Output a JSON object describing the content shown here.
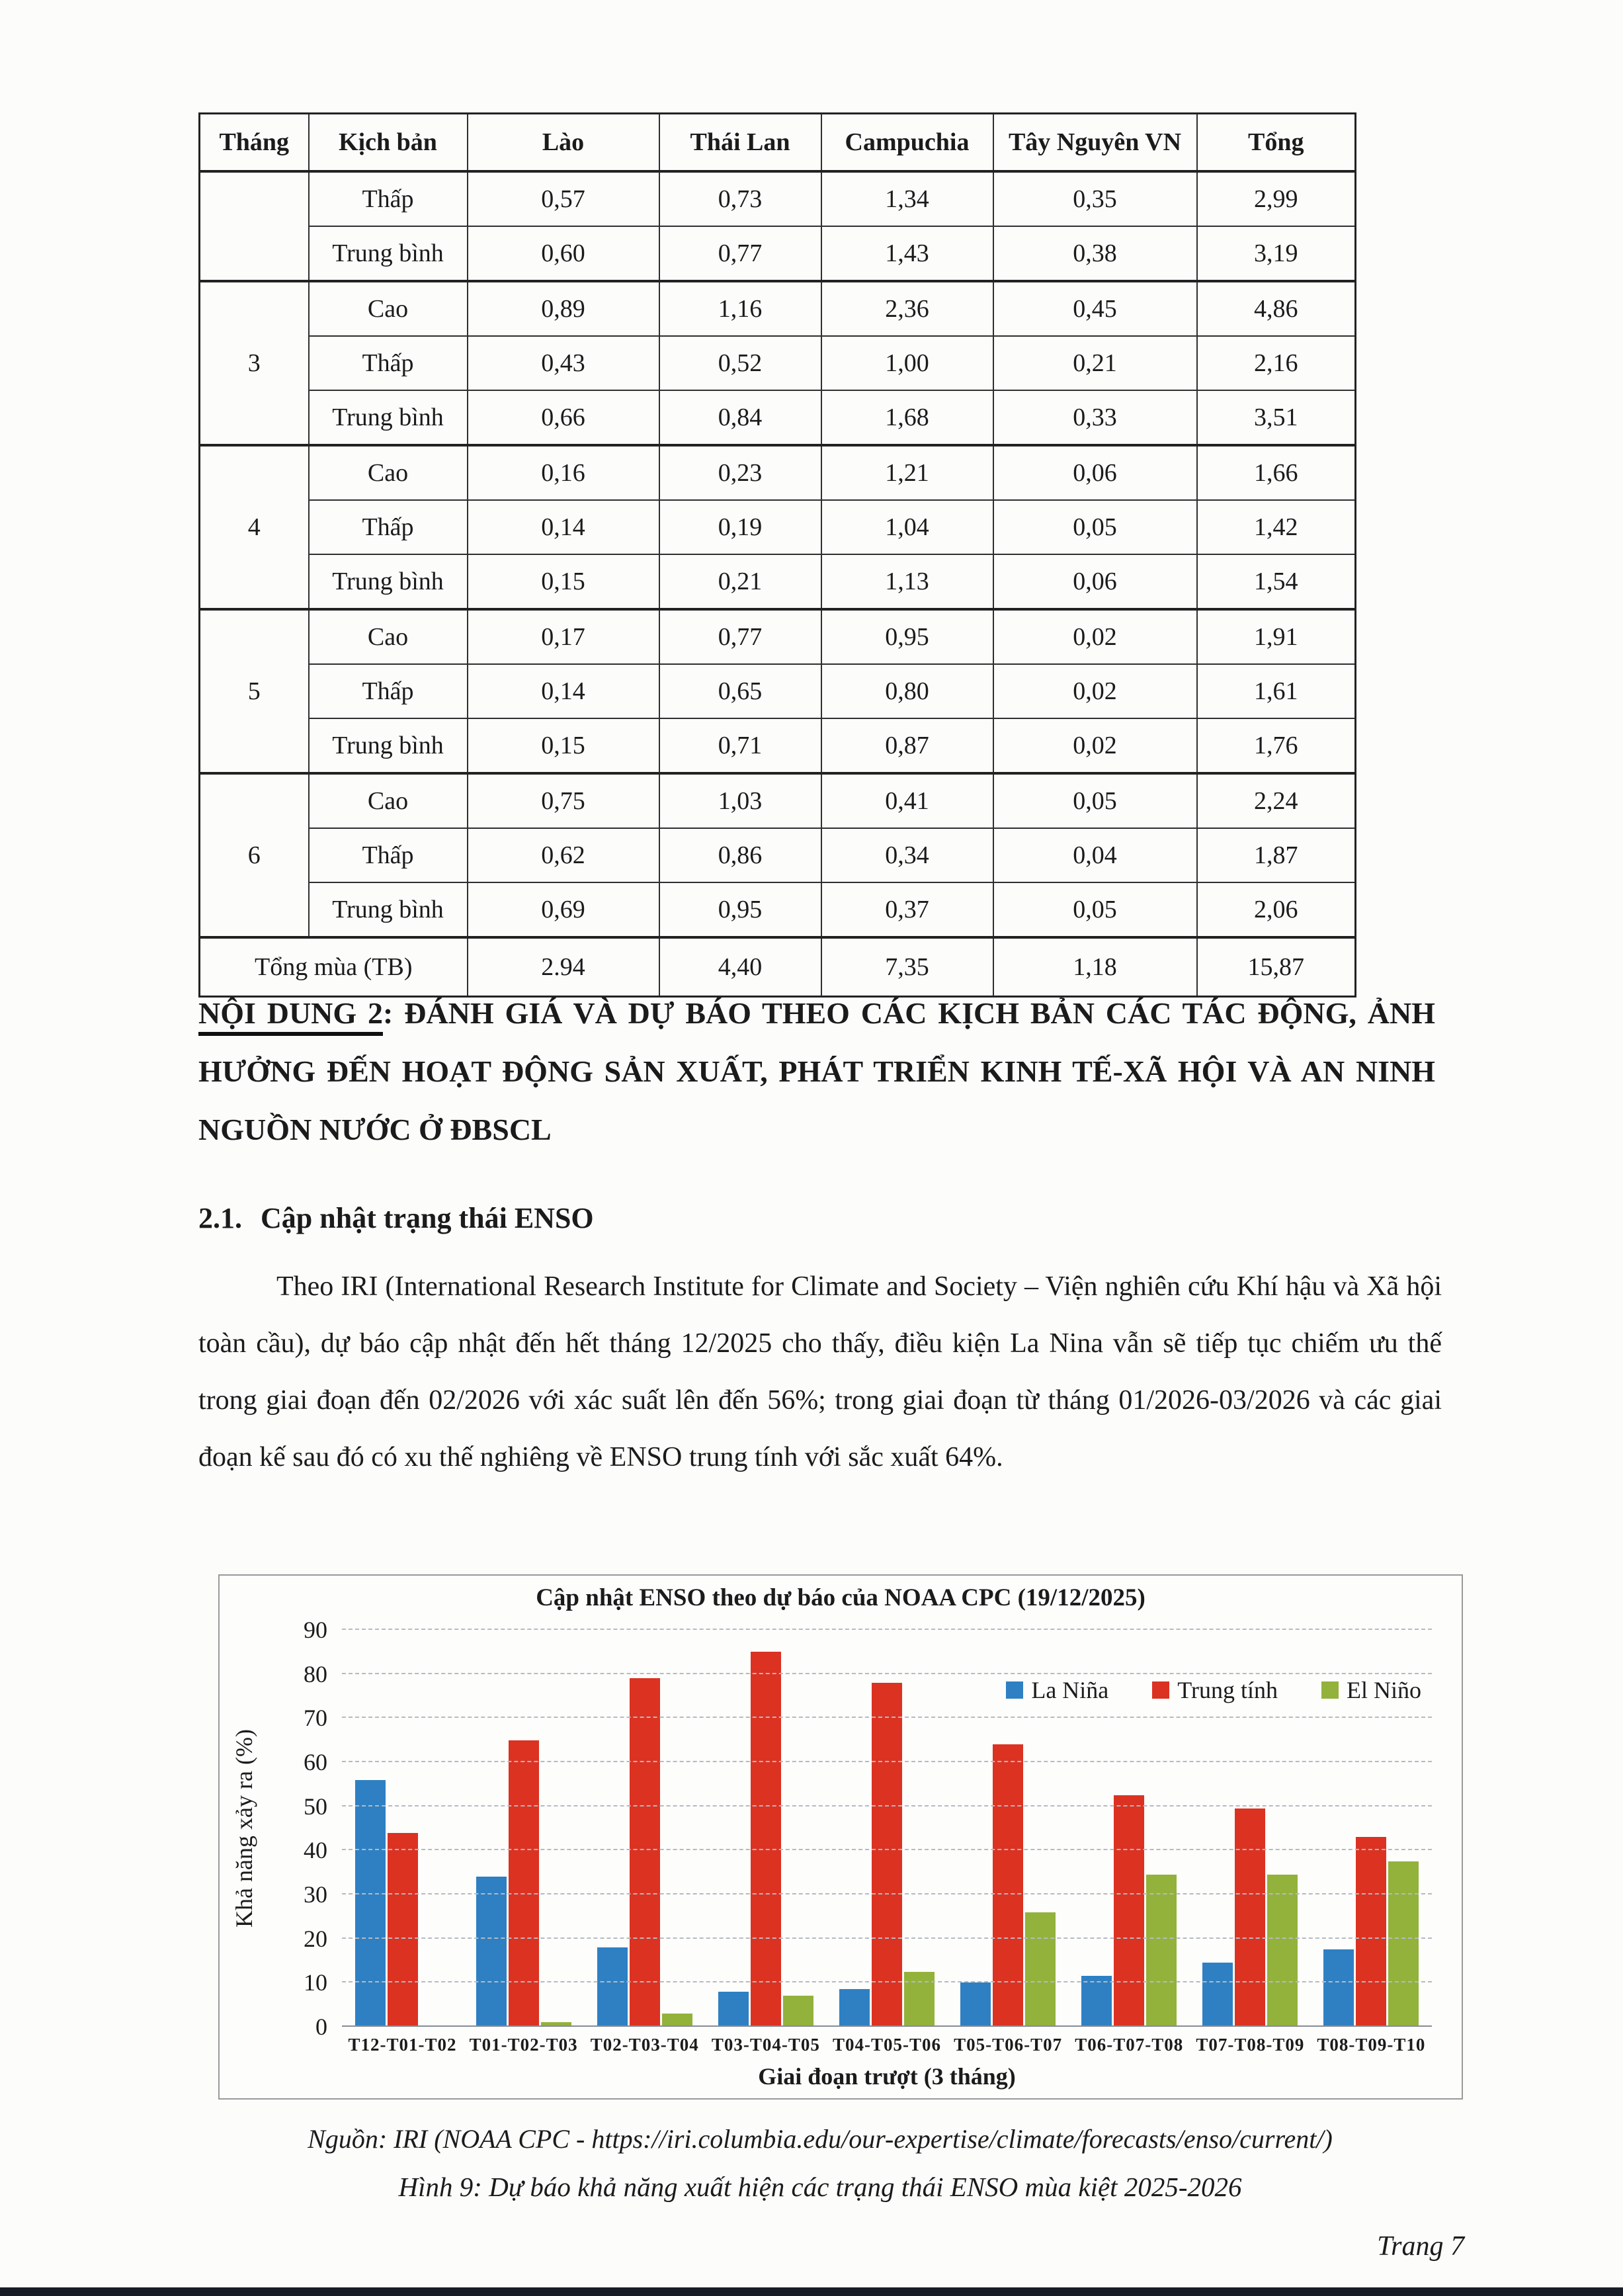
{
  "table": {
    "headers": [
      "Tháng",
      "Kịch bản",
      "Lào",
      "Thái Lan",
      "Campuchia",
      "Tây Nguyên VN",
      "Tổng"
    ],
    "groups": [
      {
        "month": "",
        "rows": [
          {
            "scenario": "Thấp",
            "values": [
              "0,57",
              "0,73",
              "1,34",
              "0,35",
              "2,99"
            ]
          },
          {
            "scenario": "Trung bình",
            "values": [
              "0,60",
              "0,77",
              "1,43",
              "0,38",
              "3,19"
            ]
          }
        ]
      },
      {
        "month": "3",
        "rows": [
          {
            "scenario": "Cao",
            "values": [
              "0,89",
              "1,16",
              "2,36",
              "0,45",
              "4,86"
            ]
          },
          {
            "scenario": "Thấp",
            "values": [
              "0,43",
              "0,52",
              "1,00",
              "0,21",
              "2,16"
            ]
          },
          {
            "scenario": "Trung bình",
            "values": [
              "0,66",
              "0,84",
              "1,68",
              "0,33",
              "3,51"
            ]
          }
        ]
      },
      {
        "month": "4",
        "rows": [
          {
            "scenario": "Cao",
            "values": [
              "0,16",
              "0,23",
              "1,21",
              "0,06",
              "1,66"
            ]
          },
          {
            "scenario": "Thấp",
            "values": [
              "0,14",
              "0,19",
              "1,04",
              "0,05",
              "1,42"
            ]
          },
          {
            "scenario": "Trung bình",
            "values": [
              "0,15",
              "0,21",
              "1,13",
              "0,06",
              "1,54"
            ]
          }
        ]
      },
      {
        "month": "5",
        "rows": [
          {
            "scenario": "Cao",
            "values": [
              "0,17",
              "0,77",
              "0,95",
              "0,02",
              "1,91"
            ]
          },
          {
            "scenario": "Thấp",
            "values": [
              "0,14",
              "0,65",
              "0,80",
              "0,02",
              "1,61"
            ]
          },
          {
            "scenario": "Trung bình",
            "values": [
              "0,15",
              "0,71",
              "0,87",
              "0,02",
              "1,76"
            ]
          }
        ]
      },
      {
        "month": "6",
        "rows": [
          {
            "scenario": "Cao",
            "values": [
              "0,75",
              "1,03",
              "0,41",
              "0,05",
              "2,24"
            ]
          },
          {
            "scenario": "Thấp",
            "values": [
              "0,62",
              "0,86",
              "0,34",
              "0,04",
              "1,87"
            ]
          },
          {
            "scenario": "Trung bình",
            "values": [
              "0,69",
              "0,95",
              "0,37",
              "0,05",
              "2,06"
            ]
          }
        ]
      }
    ],
    "total_row": {
      "label": "Tổng mùa (TB)",
      "values": [
        "2.94",
        "4,40",
        "7,35",
        "1,18",
        "15,87"
      ]
    }
  },
  "section": {
    "heading_number": "NỘI DUNG 2",
    "heading_rest": ": ĐÁNH GIÁ VÀ DỰ BÁO THEO CÁC KỊCH BẢN CÁC TÁC ĐỘNG, ẢNH HƯỞNG ĐẾN HOẠT ĐỘNG SẢN XUẤT, PHÁT TRIỂN KINH TẾ-XÃ HỘI VÀ AN NINH NGUỒN NƯỚC Ở ĐBSCL",
    "subheading_number": "2.1.",
    "subheading_text": "Cập nhật trạng thái ENSO",
    "paragraph": "Theo IRI (International Research Institute for Climate and Society – Viện nghiên cứu Khí hậu và Xã hội toàn cầu), dự báo cập nhật đến hết tháng 12/2025 cho thấy, điều kiện La Nina vẫn sẽ tiếp tục chiếm ưu thế trong giai đoạn đến 02/2026 với xác suất lên đến 56%; trong giai đoạn từ tháng 01/2026-03/2026 và các giai đoạn kế sau đó có xu thế nghiêng về ENSO trung tính với sắc xuất 64%."
  },
  "chart_data": {
    "type": "bar",
    "title": "Cập nhật ENSO theo dự báo của NOAA CPC (19/12/2025)",
    "ylabel": "Khả năng xảy ra (%)",
    "xlabel": "Giai đoạn trượt (3 tháng)",
    "ylim": [
      0,
      90
    ],
    "ytick_step": 10,
    "grid": true,
    "legend_position": "top-right",
    "categories": [
      "T12-T01-T02",
      "T01-T02-T03",
      "T02-T03-T04",
      "T03-T04-T05",
      "T04-T05-T06",
      "T05-T06-T07",
      "T06-T07-T08",
      "T07-T08-T09",
      "T08-T09-T10"
    ],
    "series": [
      {
        "name": "La Niña",
        "color": "#2e80c3",
        "values": [
          56,
          34,
          18,
          8,
          8.5,
          10,
          11.5,
          14.5,
          17.5
        ]
      },
      {
        "name": "Trung tính",
        "color": "#dc3222",
        "values": [
          44,
          65,
          79,
          85,
          78,
          64,
          52.5,
          49.5,
          43
        ]
      },
      {
        "name": "El Niño",
        "color": "#92b23c",
        "values": [
          0,
          1,
          3,
          7,
          12.5,
          26,
          34.5,
          34.5,
          37.5
        ]
      }
    ]
  },
  "figure": {
    "source_line": "Nguồn: IRI (NOAA CPC - https://iri.columbia.edu/our-expertise/climate/forecasts/enso/current/)",
    "caption_line": "Hình 9: Dự báo khả năng xuất hiện các trạng thái ENSO mùa kiệt 2025-2026"
  },
  "footer": {
    "page_label": "Trang 7"
  }
}
